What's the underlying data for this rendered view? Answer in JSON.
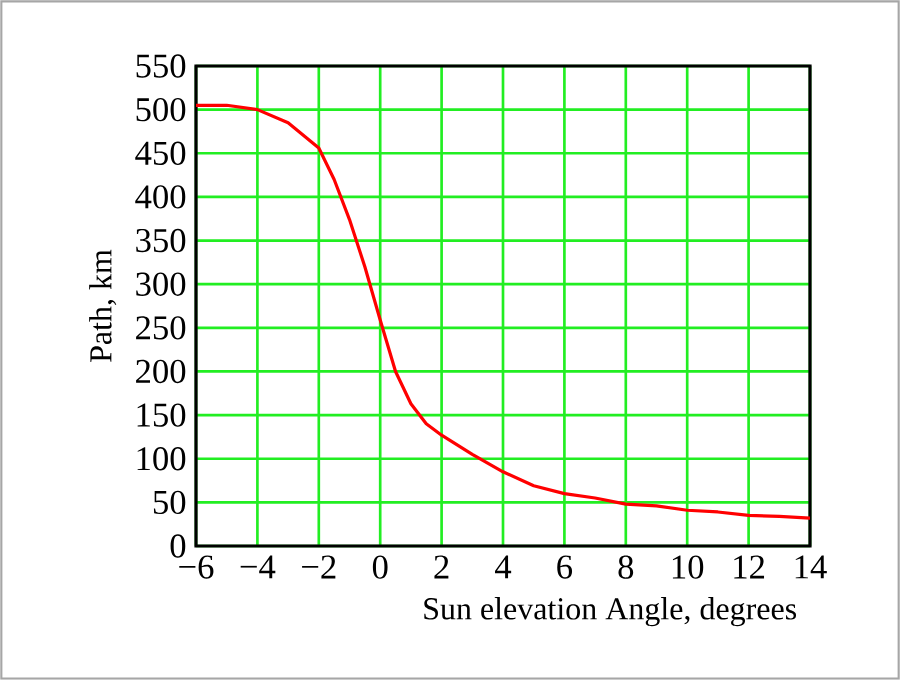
{
  "chart_data": {
    "type": "line",
    "xlabel": "Sun elevation Angle, degrees",
    "ylabel": "Path, km",
    "x": [
      -6,
      -5,
      -4,
      -3,
      -2,
      -1.5,
      -1,
      -0.5,
      0,
      0.5,
      1,
      1.5,
      2,
      3,
      4,
      5,
      6,
      7,
      8,
      9,
      10,
      11,
      12,
      13,
      14
    ],
    "series": [
      {
        "color": "#ff0000",
        "values": [
          505,
          505,
          500,
          485,
          456,
          420,
          374,
          320,
          259,
          200,
          163,
          140,
          127,
          105,
          85,
          69,
          60,
          55,
          48,
          46,
          41,
          39,
          35,
          34,
          32
        ]
      }
    ],
    "xlim": [
      -6,
      14
    ],
    "ylim": [
      0,
      550
    ],
    "xticks": [
      {
        "value": -6,
        "label": "−6"
      },
      {
        "value": -4,
        "label": "−4"
      },
      {
        "value": -2,
        "label": "−2"
      },
      0,
      2,
      4,
      6,
      8,
      10,
      12,
      14
    ],
    "yticks": [
      0,
      50,
      100,
      150,
      200,
      250,
      300,
      350,
      400,
      450,
      500,
      550
    ],
    "grid": true,
    "marker": "none",
    "line_style": "solid"
  }
}
